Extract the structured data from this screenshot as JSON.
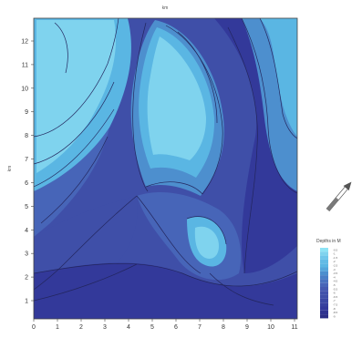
{
  "axes": {
    "x_unit": "km",
    "y_unit": "km",
    "x_ticks": [
      "0",
      "1",
      "2",
      "3",
      "4",
      "5",
      "6",
      "7",
      "8",
      "9",
      "10",
      "11"
    ],
    "y_ticks": [
      "1",
      "2",
      "3",
      "4",
      "5",
      "6",
      "7",
      "8",
      "9",
      "10",
      "11",
      "12"
    ]
  },
  "legend": {
    "title": "Depths in M",
    "labels": [
      "-0.5",
      "-1",
      "-1.5",
      "-2",
      "-2.5",
      "-3",
      "-3.5",
      "-4",
      "-4.5",
      "-5",
      "-5.5",
      "-6",
      "-6.5",
      "-7",
      "-7.5",
      "-8",
      "-8.5",
      "-9"
    ]
  },
  "colors": {
    "shallow": "#7fd3ee",
    "light": "#5ab6e3",
    "mid": "#4d8fce",
    "midDeep": "#4765b8",
    "deep": "#3f4fa8",
    "deepest": "#33399a",
    "contour": "#23265e"
  },
  "icons": {
    "north_arrow": "north-arrow-icon"
  }
}
